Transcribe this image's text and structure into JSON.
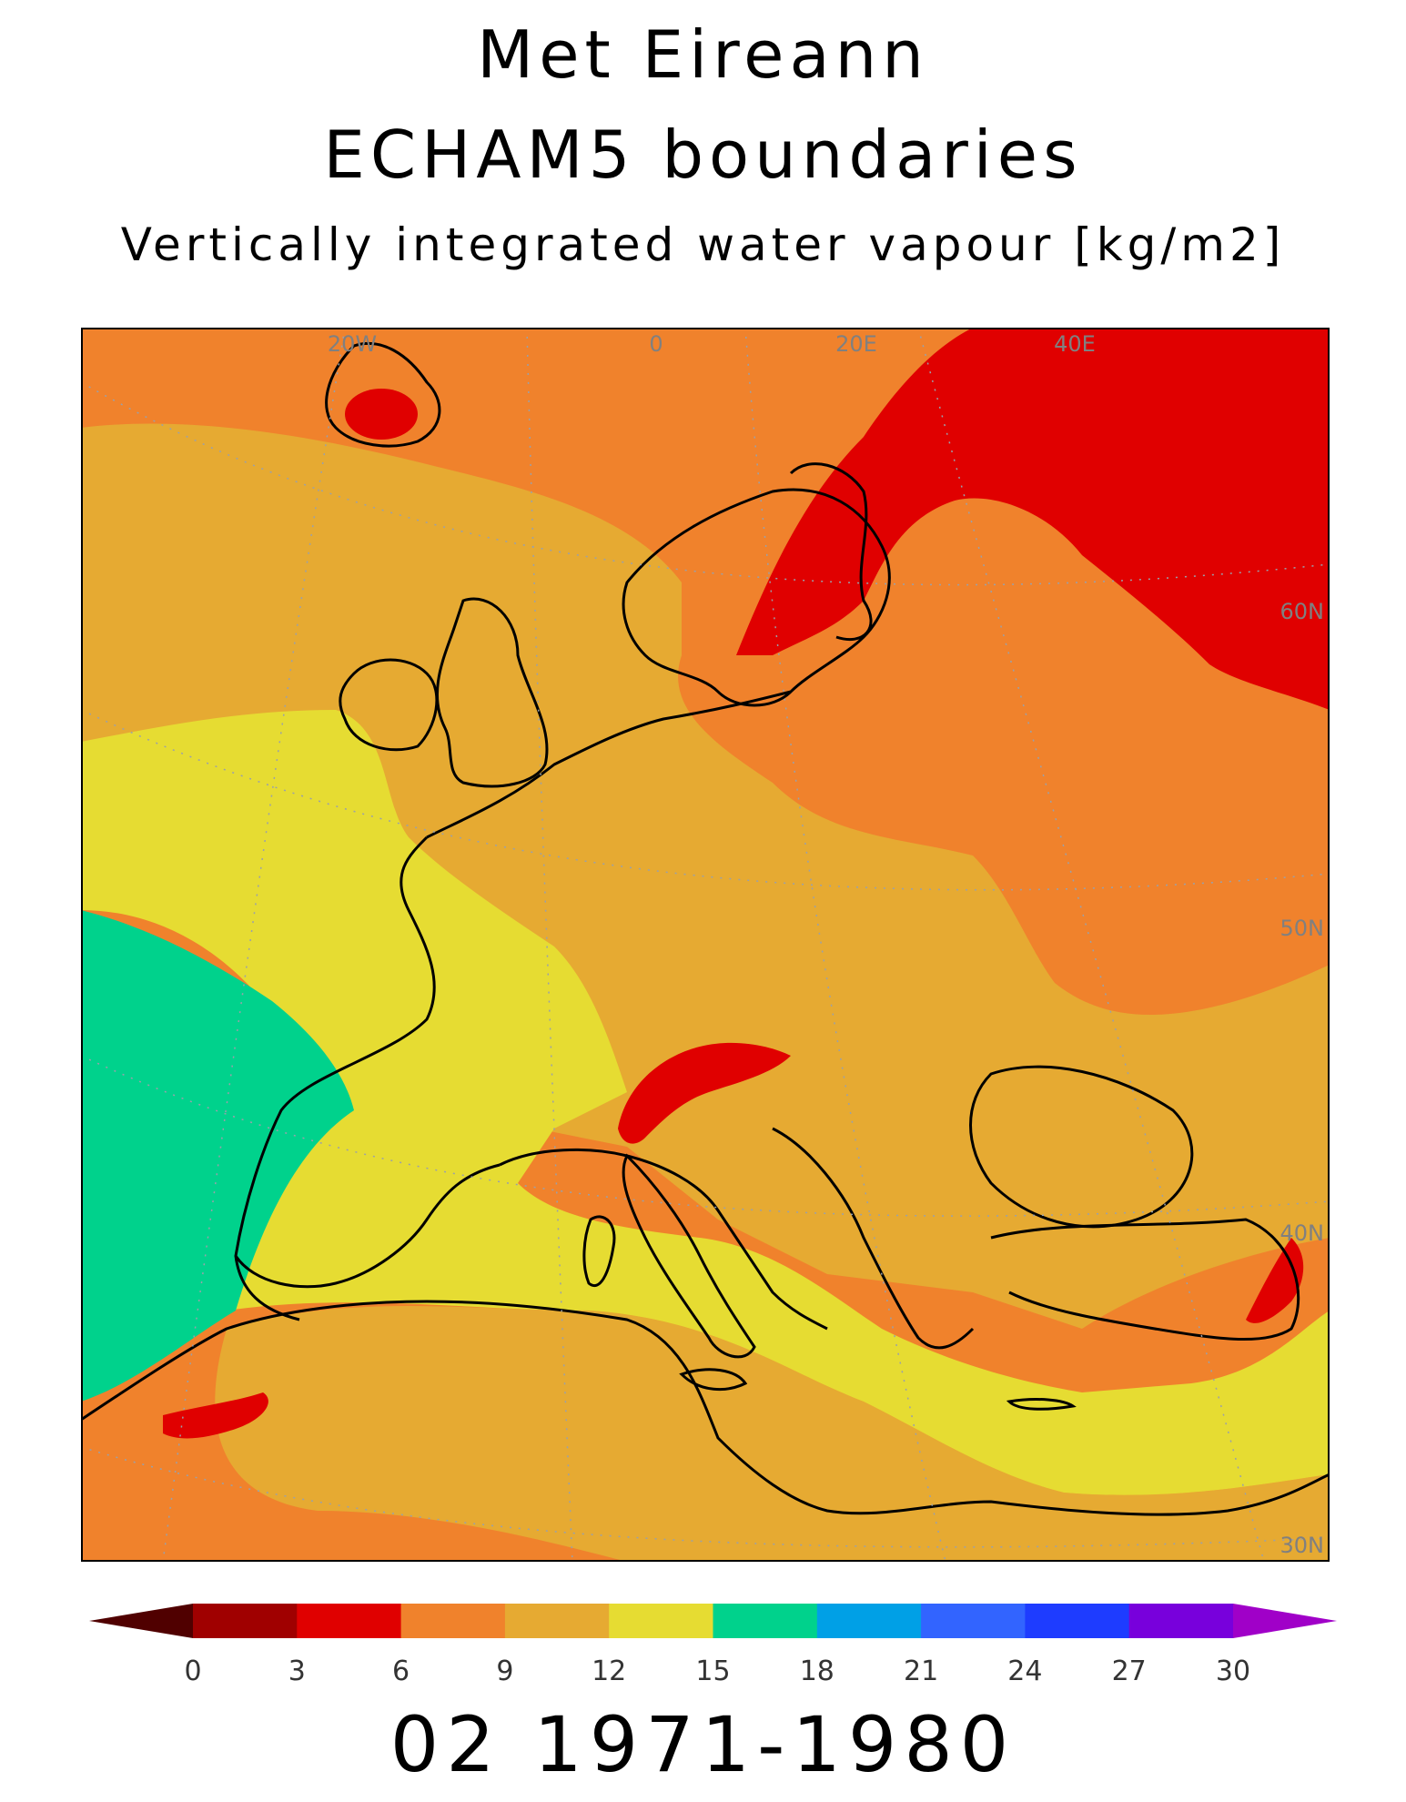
{
  "titles": {
    "line1": "Met Eireann",
    "line2": "ECHAM5 boundaries",
    "line3": "Vertically integrated water vapour [kg/m2]"
  },
  "period_label": "02 1971-1980",
  "map": {
    "region": "Europe",
    "grid_labels": {
      "longitude": [
        "20W",
        "0",
        "20E",
        "40E"
      ],
      "latitude": [
        "60N",
        "50N",
        "40N",
        "30N"
      ]
    },
    "field_colors": {
      "red": "#e00000",
      "orange": "#f0822c",
      "gold": "#e6aa32",
      "yellow": "#e6dc32",
      "green": "#00d28c",
      "coast": "#000000"
    }
  },
  "colorbar": {
    "ticks": [
      "0",
      "3",
      "6",
      "9",
      "12",
      "15",
      "18",
      "21",
      "24",
      "27",
      "30"
    ],
    "below_color": "#500000",
    "above_color": "#a000c8",
    "colors": [
      "#a00000",
      "#e00000",
      "#f0822c",
      "#e6aa32",
      "#e6dc32",
      "#00d28c",
      "#00a0e6",
      "#3264ff",
      "#1e3cff",
      "#7800dc"
    ]
  }
}
